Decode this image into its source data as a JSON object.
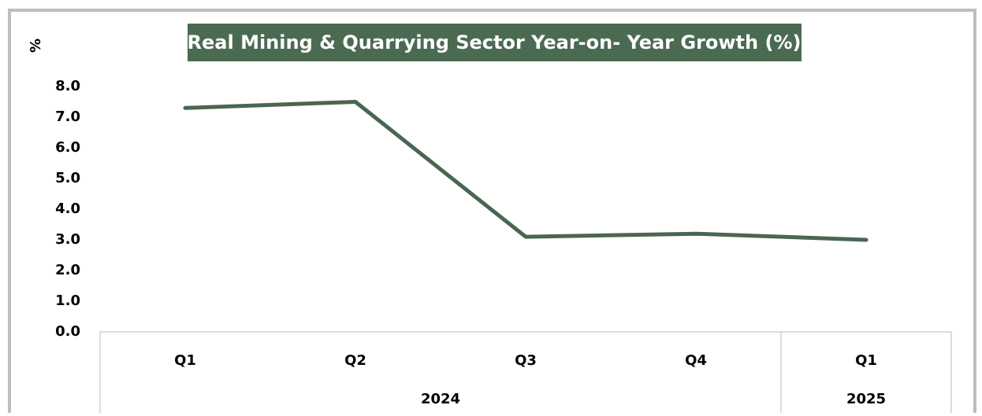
{
  "chart_data": {
    "type": "line",
    "title": "Real Mining & Quarrying Sector Year-on- Year Growth (%)",
    "y_label": "%",
    "categories": [
      "Q1",
      "Q2",
      "Q3",
      "Q4",
      "Q1"
    ],
    "years": [
      "2024",
      "2024",
      "2024",
      "2024",
      "2025"
    ],
    "series": [
      {
        "name": "Real Mining & Quarrying Sector Year-on- Year Growth (%)",
        "color": "#4a6651",
        "values": [
          7.3,
          7.5,
          3.1,
          3.2,
          3.0
        ]
      }
    ],
    "ylim": [
      0,
      8
    ],
    "yticks": [
      {
        "value": 0,
        "label": "0.0"
      },
      {
        "value": 1,
        "label": "1.0"
      },
      {
        "value": 2,
        "label": "2.0"
      },
      {
        "value": 3,
        "label": "3.0"
      },
      {
        "value": 4,
        "label": "4.0"
      },
      {
        "value": 5,
        "label": "5.0"
      },
      {
        "value": 6,
        "label": "6.0"
      },
      {
        "value": 7,
        "label": "7.0"
      },
      {
        "value": 8,
        "label": "8.0"
      }
    ],
    "title_background": "#4a6b52",
    "grid": false
  }
}
